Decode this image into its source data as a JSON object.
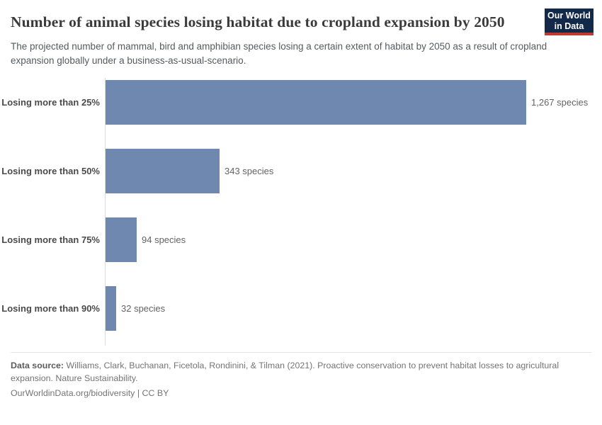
{
  "header": {
    "title": "Number of animal species losing habitat due to cropland expansion by 2050",
    "subtitle": "The projected number of mammal, bird and amphibian species losing a certain extent of habitat by 2050 as a result of cropland expansion globally under a business-as-usual-scenario.",
    "logo": {
      "line1": "Our World",
      "line2": "in Data",
      "bg_color": "#12294a",
      "accent_color": "#bf3b31"
    }
  },
  "chart_data": {
    "type": "bar",
    "orientation": "horizontal",
    "title": "Number of animal species losing habitat due to cropland expansion by 2050",
    "categories": [
      "Losing more than 25%",
      "Losing more than 50%",
      "Losing more than 75%",
      "Losing more than 90%"
    ],
    "values": [
      1267,
      343,
      94,
      32
    ],
    "value_labels": [
      "1,267 species",
      "343 species",
      "94 species",
      "32 species"
    ],
    "unit": "species",
    "bar_color": "#6e88b0",
    "axis_color": "#dcdcdc",
    "xlim": [
      0,
      1267
    ],
    "grid": false,
    "legend": "none"
  },
  "footer": {
    "source_label": "Data source:",
    "source_text": " Williams, Clark, Buchanan, Ficetola, Rondinini, & Tilman (2021). Proactive conservation to prevent habitat losses to agricultural expansion. Nature Sustainability.",
    "citation": "OurWorldinData.org/biodiversity | CC BY"
  }
}
